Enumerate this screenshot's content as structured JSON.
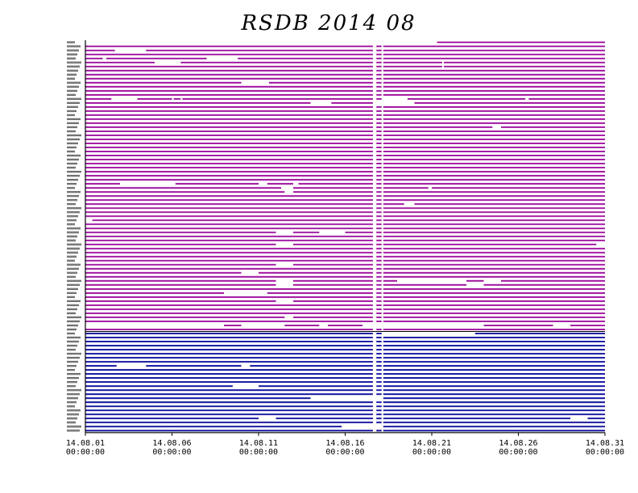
{
  "chart_data": {
    "type": "timeline",
    "title": "RSDB  2014  08",
    "x_range": [
      "2014-08-01 00:00:00",
      "2014-08-31 00:00:00"
    ],
    "x_ticks": [
      {
        "date": "14.08.01",
        "time": "00:00:00",
        "day": 1
      },
      {
        "date": "14.08.06",
        "time": "00:00:00",
        "day": 6
      },
      {
        "date": "14.08.11",
        "time": "00:00:00",
        "day": 11
      },
      {
        "date": "14.08.16",
        "time": "00:00:00",
        "day": 16
      },
      {
        "date": "14.08.21",
        "time": "00:00:00",
        "day": 21
      },
      {
        "date": "14.08.26",
        "time": "00:00:00",
        "day": 26
      },
      {
        "date": "14.08.31",
        "time": "00:00:00",
        "day": 31
      }
    ],
    "groups": [
      {
        "color": "#990099",
        "rows": 72
      },
      {
        "color": "#000099",
        "rows": 25
      }
    ],
    "common_gaps_days": [
      [
        17.6,
        17.8
      ],
      [
        18.1,
        18.2
      ]
    ],
    "gaps": [
      {
        "row": 0,
        "days": [
          [
            1.0,
            18.2
          ],
          [
            18.2,
            21.3
          ]
        ]
      },
      {
        "row": 2,
        "days": [
          [
            2.7,
            4.5
          ]
        ]
      },
      {
        "row": 4,
        "days": [
          [
            2.0,
            2.2
          ],
          [
            8.0,
            9.8
          ]
        ]
      },
      {
        "row": 5,
        "days": [
          [
            5.0,
            6.5
          ],
          [
            21.6,
            21.7
          ]
        ]
      },
      {
        "row": 6,
        "days": [
          [
            21.6,
            21.7
          ]
        ]
      },
      {
        "row": 10,
        "days": [
          [
            10.0,
            11.6
          ]
        ]
      },
      {
        "row": 14,
        "days": [
          [
            2.5,
            4.0
          ],
          [
            6.0,
            6.1
          ],
          [
            6.5,
            6.6
          ],
          [
            26.4,
            26.6
          ],
          [
            18.2,
            19.6
          ]
        ]
      },
      {
        "row": 15,
        "days": [
          [
            14.0,
            15.2
          ],
          [
            17.7,
            20.0
          ]
        ]
      },
      {
        "row": 21,
        "days": [
          [
            24.5,
            25.0
          ]
        ]
      },
      {
        "row": 35,
        "days": [
          [
            3.0,
            6.2
          ],
          [
            11.0,
            11.5
          ],
          [
            13.0,
            13.3
          ]
        ]
      },
      {
        "row": 36,
        "days": [
          [
            12.3,
            13.0
          ],
          [
            20.8,
            21.0
          ]
        ]
      },
      {
        "row": 37,
        "days": [
          [
            12.5,
            13.0
          ]
        ]
      },
      {
        "row": 40,
        "days": [
          [
            19.4,
            20.0
          ]
        ]
      },
      {
        "row": 44,
        "days": [
          [
            1.0,
            1.4
          ]
        ]
      },
      {
        "row": 47,
        "days": [
          [
            12.0,
            13.0
          ],
          [
            14.5,
            16.0
          ]
        ]
      },
      {
        "row": 50,
        "days": [
          [
            12.0,
            13.0
          ],
          [
            30.5,
            31.0
          ]
        ]
      },
      {
        "row": 55,
        "days": [
          [
            12.0,
            13.0
          ]
        ]
      },
      {
        "row": 57,
        "days": [
          [
            10.0,
            11.0
          ]
        ]
      },
      {
        "row": 59,
        "days": [
          [
            12.0,
            13.0
          ],
          [
            19.0,
            23.0
          ],
          [
            24.0,
            25.0
          ]
        ]
      },
      {
        "row": 60,
        "days": [
          [
            12.0,
            13.0
          ],
          [
            23.0,
            24.0
          ]
        ]
      },
      {
        "row": 62,
        "days": [
          [
            9.0,
            11.5
          ]
        ]
      },
      {
        "row": 64,
        "days": [
          [
            12.0,
            13.0
          ]
        ]
      },
      {
        "row": 68,
        "days": [
          [
            12.5,
            13.0
          ]
        ]
      },
      {
        "row": 70,
        "days": [
          [
            1.0,
            9.0
          ],
          [
            10.0,
            12.5
          ],
          [
            14.5,
            15.0
          ],
          [
            17.0,
            24.0
          ],
          [
            28.0,
            29.0
          ]
        ]
      },
      {
        "row": 72,
        "days": [
          [
            18.2,
            23.5
          ]
        ]
      },
      {
        "row": 80,
        "days": [
          [
            2.8,
            4.5
          ],
          [
            10.0,
            10.5
          ]
        ]
      },
      {
        "row": 85,
        "days": [
          [
            9.5,
            11.0
          ]
        ]
      },
      {
        "row": 88,
        "days": [
          [
            14.0,
            17.6
          ]
        ]
      },
      {
        "row": 93,
        "days": [
          [
            11.0,
            12.0
          ],
          [
            29.0,
            30.0
          ]
        ]
      },
      {
        "row": 95,
        "days": [
          [
            15.8,
            17.6
          ]
        ]
      }
    ],
    "partial_rows": [
      {
        "row": 70,
        "segments_days": [
          [
            9.0,
            10.0
          ],
          [
            12.5,
            14.5
          ],
          [
            15.0,
            17.0
          ],
          [
            24.0,
            28.0
          ],
          [
            29.0,
            31.0
          ]
        ]
      },
      {
        "row": 88,
        "segments_days": [
          [
            1.0,
            14.0
          ],
          [
            18.2,
            31.0
          ]
        ]
      },
      {
        "row": 95,
        "segments_days": [
          [
            1.0,
            15.8
          ],
          [
            18.2,
            31.0
          ]
        ]
      }
    ]
  }
}
